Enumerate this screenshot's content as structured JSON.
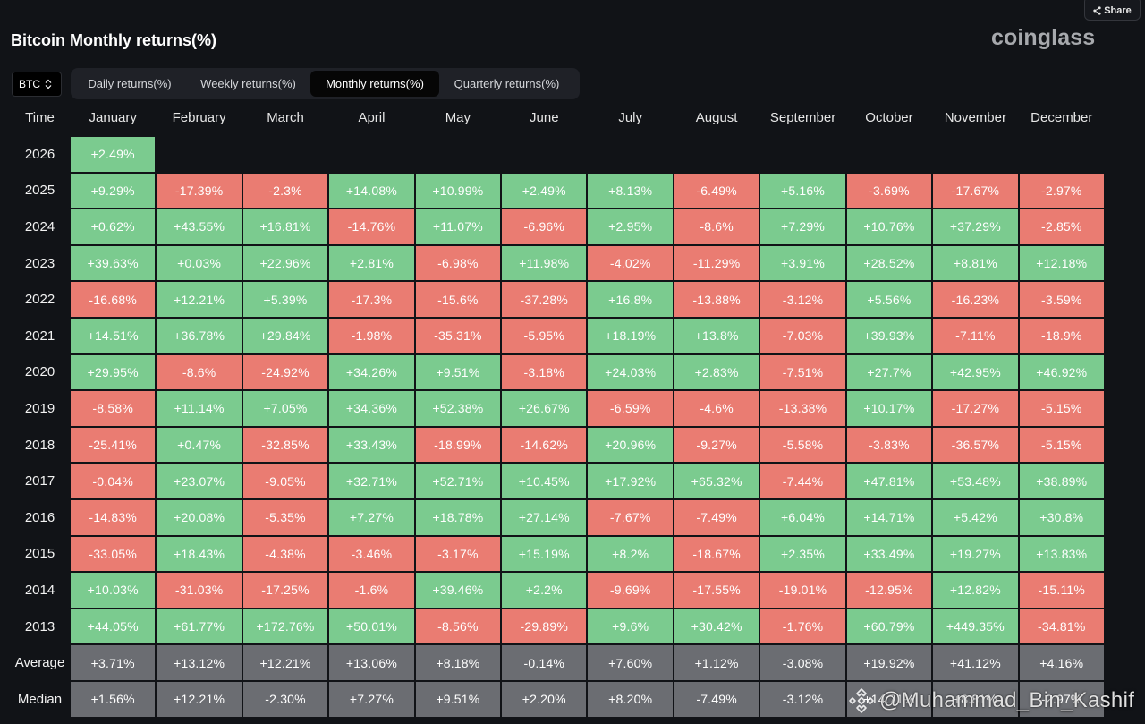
{
  "header": {
    "share_label": "Share",
    "title": "Bitcoin Monthly returns(%)",
    "logo_text": "coinglass"
  },
  "controls": {
    "asset": "BTC",
    "tabs": [
      {
        "label": "Daily returns(%)",
        "active": false
      },
      {
        "label": "Weekly returns(%)",
        "active": false
      },
      {
        "label": "Monthly returns(%)",
        "active": true
      },
      {
        "label": "Quarterly returns(%)",
        "active": false
      }
    ]
  },
  "table": {
    "time_header": "Time",
    "months": [
      "January",
      "February",
      "March",
      "April",
      "May",
      "June",
      "July",
      "August",
      "September",
      "October",
      "November",
      "December"
    ],
    "rows": [
      {
        "label": "2026",
        "values": [
          "+2.49%"
        ]
      },
      {
        "label": "2025",
        "values": [
          "+9.29%",
          "-17.39%",
          "-2.3%",
          "+14.08%",
          "+10.99%",
          "+2.49%",
          "+8.13%",
          "-6.49%",
          "+5.16%",
          "-3.69%",
          "-17.67%",
          "-2.97%"
        ]
      },
      {
        "label": "2024",
        "values": [
          "+0.62%",
          "+43.55%",
          "+16.81%",
          "-14.76%",
          "+11.07%",
          "-6.96%",
          "+2.95%",
          "-8.6%",
          "+7.29%",
          "+10.76%",
          "+37.29%",
          "-2.85%"
        ]
      },
      {
        "label": "2023",
        "values": [
          "+39.63%",
          "+0.03%",
          "+22.96%",
          "+2.81%",
          "-6.98%",
          "+11.98%",
          "-4.02%",
          "-11.29%",
          "+3.91%",
          "+28.52%",
          "+8.81%",
          "+12.18%"
        ]
      },
      {
        "label": "2022",
        "values": [
          "-16.68%",
          "+12.21%",
          "+5.39%",
          "-17.3%",
          "-15.6%",
          "-37.28%",
          "+16.8%",
          "-13.88%",
          "-3.12%",
          "+5.56%",
          "-16.23%",
          "-3.59%"
        ]
      },
      {
        "label": "2021",
        "values": [
          "+14.51%",
          "+36.78%",
          "+29.84%",
          "-1.98%",
          "-35.31%",
          "-5.95%",
          "+18.19%",
          "+13.8%",
          "-7.03%",
          "+39.93%",
          "-7.11%",
          "-18.9%"
        ]
      },
      {
        "label": "2020",
        "values": [
          "+29.95%",
          "-8.6%",
          "-24.92%",
          "+34.26%",
          "+9.51%",
          "-3.18%",
          "+24.03%",
          "+2.83%",
          "-7.51%",
          "+27.7%",
          "+42.95%",
          "+46.92%"
        ]
      },
      {
        "label": "2019",
        "values": [
          "-8.58%",
          "+11.14%",
          "+7.05%",
          "+34.36%",
          "+52.38%",
          "+26.67%",
          "-6.59%",
          "-4.6%",
          "-13.38%",
          "+10.17%",
          "-17.27%",
          "-5.15%"
        ]
      },
      {
        "label": "2018",
        "values": [
          "-25.41%",
          "+0.47%",
          "-32.85%",
          "+33.43%",
          "-18.99%",
          "-14.62%",
          "+20.96%",
          "-9.27%",
          "-5.58%",
          "-3.83%",
          "-36.57%",
          "-5.15%"
        ]
      },
      {
        "label": "2017",
        "values": [
          "-0.04%",
          "+23.07%",
          "-9.05%",
          "+32.71%",
          "+52.71%",
          "+10.45%",
          "+17.92%",
          "+65.32%",
          "-7.44%",
          "+47.81%",
          "+53.48%",
          "+38.89%"
        ]
      },
      {
        "label": "2016",
        "values": [
          "-14.83%",
          "+20.08%",
          "-5.35%",
          "+7.27%",
          "+18.78%",
          "+27.14%",
          "-7.67%",
          "-7.49%",
          "+6.04%",
          "+14.71%",
          "+5.42%",
          "+30.8%"
        ]
      },
      {
        "label": "2015",
        "values": [
          "-33.05%",
          "+18.43%",
          "-4.38%",
          "-3.46%",
          "-3.17%",
          "+15.19%",
          "+8.2%",
          "-18.67%",
          "+2.35%",
          "+33.49%",
          "+19.27%",
          "+13.83%"
        ]
      },
      {
        "label": "2014",
        "values": [
          "+10.03%",
          "-31.03%",
          "-17.25%",
          "-1.6%",
          "+39.46%",
          "+2.2%",
          "-9.69%",
          "-17.55%",
          "-19.01%",
          "-12.95%",
          "+12.82%",
          "-15.11%"
        ]
      },
      {
        "label": "2013",
        "values": [
          "+44.05%",
          "+61.77%",
          "+172.76%",
          "+50.01%",
          "-8.56%",
          "-29.89%",
          "+9.6%",
          "+30.42%",
          "-1.76%",
          "+60.79%",
          "+449.35%",
          "-34.81%"
        ]
      },
      {
        "label": "Average",
        "summary": true,
        "values": [
          "+3.71%",
          "+13.12%",
          "+12.21%",
          "+13.06%",
          "+8.18%",
          "-0.14%",
          "+7.60%",
          "+1.12%",
          "-3.08%",
          "+19.92%",
          "+41.12%",
          "+4.16%"
        ]
      },
      {
        "label": "Median",
        "summary": true,
        "values": [
          "+1.56%",
          "+12.21%",
          "-2.30%",
          "+7.27%",
          "+9.51%",
          "+2.20%",
          "+8.20%",
          "-7.49%",
          "-3.12%",
          "+14.71%",
          "+8.81%",
          "-2.97%"
        ]
      }
    ]
  },
  "watermark": {
    "text": "@Muhammad_Bin_Kashif",
    "icon": "binance-icon"
  },
  "icons": {
    "share": "share-icon",
    "asset_select": "updown-chevron-icon"
  },
  "colors": {
    "background": "#111317",
    "positive": "#7bcb8f",
    "negative": "#ea7c72",
    "summary": "#6b6d72",
    "tab_bar": "#1f2127",
    "active_tab": "#060606",
    "logo": "#a7a9ad"
  }
}
